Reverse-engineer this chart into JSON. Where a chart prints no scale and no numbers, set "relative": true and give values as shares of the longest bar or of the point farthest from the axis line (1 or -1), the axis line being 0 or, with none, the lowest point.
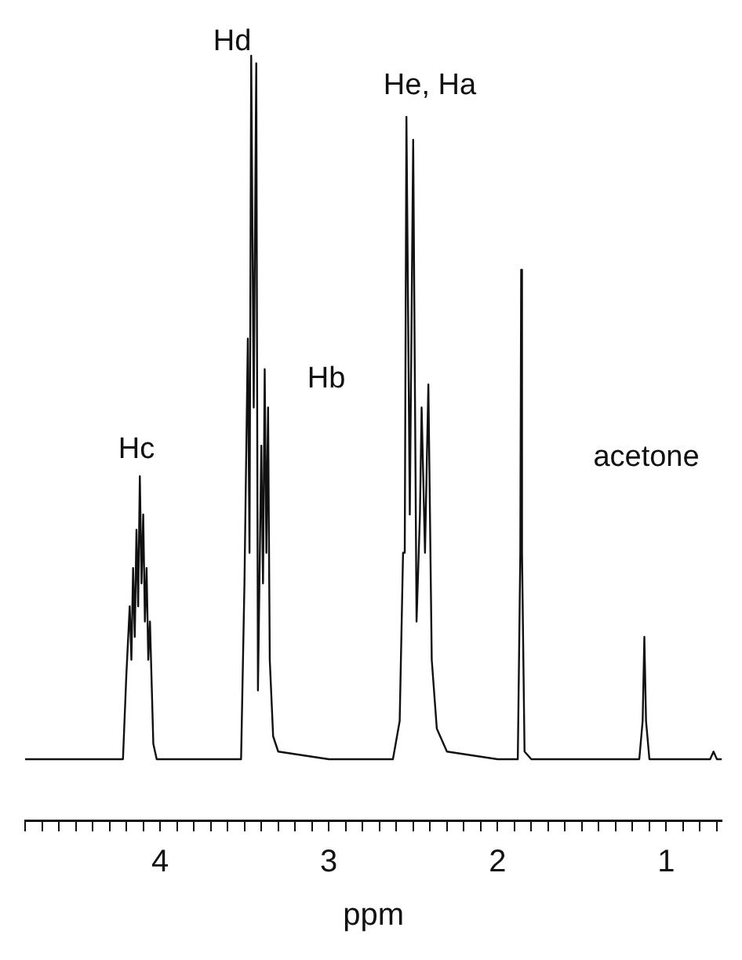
{
  "chart_data": {
    "type": "line",
    "relative": true,
    "xlabel": "ppm",
    "color": "#111111",
    "marker": "none",
    "grid": false,
    "legend": false,
    "tick_labels": "x",
    "xlim": [
      4.8,
      0.67
    ],
    "xticks": [
      {
        "value": 4.8,
        "label": null
      },
      {
        "value": 4.7,
        "label": null
      },
      {
        "value": 4.6,
        "label": null
      },
      {
        "value": 4.5,
        "label": null
      },
      {
        "value": 4.4,
        "label": null
      },
      {
        "value": 4.3,
        "label": null
      },
      {
        "value": 4.2,
        "label": null
      },
      {
        "value": 4.1,
        "label": null
      },
      4,
      {
        "value": 3.9,
        "label": null
      },
      {
        "value": 3.8,
        "label": null
      },
      {
        "value": 3.7,
        "label": null
      },
      {
        "value": 3.6,
        "label": null
      },
      {
        "value": 3.5,
        "label": null
      },
      {
        "value": 3.4,
        "label": null
      },
      {
        "value": 3.3,
        "label": null
      },
      {
        "value": 3.2,
        "label": null
      },
      {
        "value": 3.1,
        "label": null
      },
      3,
      {
        "value": 2.9,
        "label": null
      },
      {
        "value": 2.8,
        "label": null
      },
      {
        "value": 2.7,
        "label": null
      },
      {
        "value": 2.6,
        "label": null
      },
      {
        "value": 2.5,
        "label": null
      },
      {
        "value": 2.4,
        "label": null
      },
      {
        "value": 2.3,
        "label": null
      },
      {
        "value": 2.2,
        "label": null
      },
      {
        "value": 2.1,
        "label": null
      },
      2,
      {
        "value": 1.9,
        "label": null
      },
      {
        "value": 1.8,
        "label": null
      },
      {
        "value": 1.7,
        "label": null
      },
      {
        "value": 1.6,
        "label": null
      },
      {
        "value": 1.5,
        "label": null
      },
      {
        "value": 1.4,
        "label": null
      },
      {
        "value": 1.3,
        "label": null
      },
      {
        "value": 1.2,
        "label": null
      },
      {
        "value": 1.1,
        "label": null
      },
      1,
      {
        "value": 0.9,
        "label": null
      },
      {
        "value": 0.8,
        "label": null
      },
      {
        "value": 0.7,
        "label": null
      }
    ],
    "x": [
      4.8,
      4.4,
      4.22,
      4.2,
      4.18,
      4.17,
      4.16,
      4.15,
      4.14,
      4.13,
      4.12,
      4.11,
      4.1,
      4.09,
      4.08,
      4.07,
      4.06,
      4.04,
      4.02,
      3.7,
      3.52,
      3.5,
      3.48,
      3.47,
      3.46,
      3.445,
      3.43,
      3.42,
      3.4,
      3.39,
      3.38,
      3.37,
      3.36,
      3.35,
      3.33,
      3.3,
      3.0,
      2.62,
      2.58,
      2.56,
      2.55,
      2.54,
      2.52,
      2.5,
      2.48,
      2.46,
      2.45,
      2.43,
      2.41,
      2.39,
      2.36,
      2.3,
      2.0,
      1.88,
      1.865,
      1.86,
      1.855,
      1.84,
      1.8,
      1.5,
      1.16,
      1.14,
      1.13,
      1.12,
      1.1,
      0.9,
      0.74,
      0.72,
      0.7,
      0.67
    ],
    "values": [
      0.08,
      0.08,
      0.08,
      0.19,
      0.28,
      0.21,
      0.33,
      0.24,
      0.38,
      0.28,
      0.45,
      0.31,
      0.4,
      0.26,
      0.33,
      0.21,
      0.26,
      0.1,
      0.08,
      0.08,
      0.08,
      0.31,
      0.63,
      0.35,
      1.0,
      0.54,
      0.99,
      0.17,
      0.49,
      0.31,
      0.59,
      0.35,
      0.54,
      0.21,
      0.11,
      0.09,
      0.08,
      0.08,
      0.13,
      0.35,
      0.35,
      0.92,
      0.4,
      0.89,
      0.26,
      0.4,
      0.54,
      0.35,
      0.57,
      0.21,
      0.12,
      0.09,
      0.08,
      0.08,
      0.35,
      0.72,
      0.35,
      0.09,
      0.08,
      0.08,
      0.08,
      0.13,
      0.24,
      0.13,
      0.08,
      0.08,
      0.08,
      0.09,
      0.08,
      0.08
    ],
    "annotations": [
      "Hc",
      "Hd",
      "Hb",
      "He, Ha",
      "acetone"
    ]
  }
}
